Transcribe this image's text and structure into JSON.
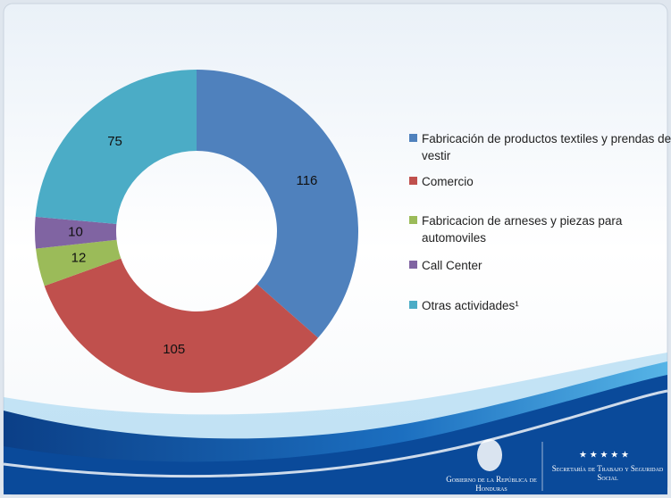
{
  "chart_data": {
    "type": "donut",
    "categories": [
      "Fabricación de productos textiles y prendas de vestir",
      "Comercio",
      "Fabricacion de arneses y piezas para automoviles",
      "Call Center",
      "Otras actividades¹"
    ],
    "values": [
      116,
      105,
      12,
      10,
      75
    ],
    "colors": [
      "#4f81bd",
      "#c0504d",
      "#9bbb59",
      "#8064a2",
      "#4bacc6"
    ],
    "legend": "right"
  },
  "footer": {
    "left": "Gobierno de la República de Honduras",
    "right": "Secretaría de Trabajo y Seguridad Social"
  }
}
